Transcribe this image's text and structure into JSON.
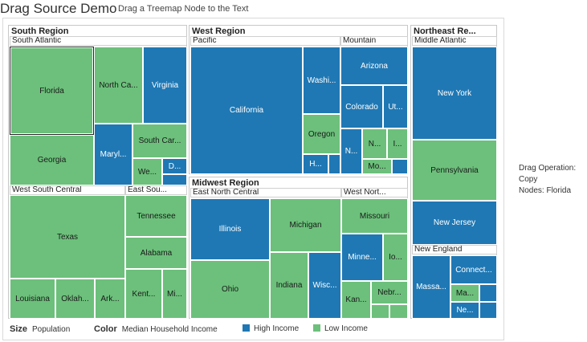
{
  "header": {
    "title": "Drag Source Demo",
    "subtitle": "Drag a Treemap Node to the Text"
  },
  "colors": {
    "high": "#1f78b4",
    "low": "#6cc07b"
  },
  "treemap": {
    "south": {
      "title": "South Region",
      "south_atlantic": {
        "label": "South Atlantic",
        "florida": "Florida",
        "georgia": "Georgia",
        "north_carolina": "North Ca...",
        "virginia": "Virginia",
        "maryland": "Maryl...",
        "south_carolina": "South Car...",
        "west_virginia": "We...",
        "delaware": "D..."
      },
      "west_south_central": {
        "label": "West South Central",
        "texas": "Texas",
        "louisiana": "Louisiana",
        "oklahoma": "Oklah...",
        "arkansas": "Ark..."
      },
      "east_south_central": {
        "label": "East Sou...",
        "tennessee": "Tennessee",
        "alabama": "Alabama",
        "kentucky": "Kent...",
        "mississippi": "Mi..."
      }
    },
    "west": {
      "title": "West Region",
      "pacific": {
        "label": "Pacific",
        "california": "California",
        "washington": "Washi...",
        "oregon": "Oregon",
        "hawaii": "H..."
      },
      "mountain": {
        "label": "Mountain",
        "arizona": "Arizona",
        "colorado": "Colorado",
        "utah": "Ut...",
        "nevada": "N...",
        "new_mexico": "N...",
        "idaho": "I...",
        "montana": "Mo..."
      }
    },
    "midwest": {
      "title": "Midwest Region",
      "east_north_central": {
        "label": "East North Central",
        "illinois": "Illinois",
        "ohio": "Ohio",
        "michigan": "Michigan",
        "indiana": "Indiana",
        "wisconsin": "Wisc..."
      },
      "west_north_central": {
        "label": "West Nort...",
        "missouri": "Missouri",
        "minnesota": "Minne...",
        "iowa": "Io...",
        "kansas": "Kan...",
        "nebraska": "Nebr..."
      }
    },
    "northeast": {
      "title": "Northeast Re...",
      "middle_atlantic": {
        "label": "Middle Atlantic",
        "new_york": "New York",
        "pennsylvania": "Pennsylvania",
        "new_jersey": "New Jersey"
      },
      "new_england": {
        "label": "New England",
        "massachusetts": "Massa...",
        "connecticut": "Connect...",
        "maine": "Ma...",
        "new_hampshire": "Ne..."
      }
    }
  },
  "legend": {
    "size_label": "Size",
    "size_value": "Population",
    "color_label": "Color",
    "color_value": "Median Household Income",
    "high_label": "High Income",
    "low_label": "Low Income"
  },
  "drop_target": {
    "operation_label": "Drag Operation:",
    "operation_value": "Copy",
    "nodes_label": "Nodes:",
    "nodes_value": "Florida"
  }
}
